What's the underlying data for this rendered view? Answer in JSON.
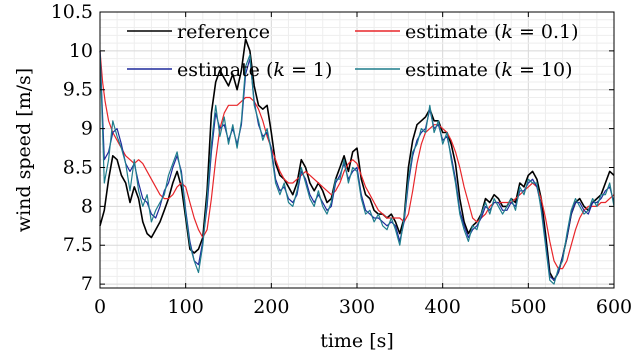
{
  "chart_data": {
    "type": "line",
    "xlabel": "time [s]",
    "ylabel": "wind speed [m/s]",
    "xlim": [
      0,
      600
    ],
    "ylim": [
      6.95,
      10.5
    ],
    "xticks": [
      "0",
      "100",
      "200",
      "300",
      "400",
      "500",
      "600"
    ],
    "yticks": [
      "7",
      "7.5",
      "8",
      "8.5",
      "9",
      "9.5",
      "10",
      "10.5"
    ],
    "grid": true,
    "legend_position": "top",
    "series": [
      {
        "name": "reference",
        "color": "#000000",
        "x": [
          0,
          5,
          10,
          15,
          20,
          25,
          30,
          35,
          40,
          45,
          50,
          55,
          60,
          65,
          70,
          75,
          80,
          85,
          90,
          95,
          100,
          105,
          110,
          115,
          120,
          125,
          130,
          135,
          140,
          145,
          150,
          155,
          160,
          165,
          170,
          175,
          180,
          185,
          190,
          195,
          200,
          205,
          210,
          215,
          220,
          225,
          230,
          235,
          240,
          245,
          250,
          255,
          260,
          265,
          270,
          275,
          280,
          285,
          290,
          295,
          300,
          305,
          310,
          315,
          320,
          325,
          330,
          335,
          340,
          345,
          350,
          355,
          360,
          365,
          370,
          375,
          380,
          385,
          390,
          395,
          400,
          405,
          410,
          415,
          420,
          425,
          430,
          435,
          440,
          445,
          450,
          455,
          460,
          465,
          470,
          475,
          480,
          485,
          490,
          495,
          500,
          505,
          510,
          515,
          520,
          525,
          530,
          535,
          540,
          545,
          550,
          555,
          560,
          565,
          570,
          575,
          580,
          585,
          590,
          595,
          600
        ],
        "values": [
          7.75,
          7.95,
          8.35,
          8.65,
          8.6,
          8.4,
          8.3,
          8.05,
          8.25,
          8.1,
          7.8,
          7.65,
          7.6,
          7.7,
          7.8,
          7.95,
          8.1,
          8.3,
          8.45,
          8.25,
          7.85,
          7.45,
          7.4,
          7.45,
          7.6,
          8.2,
          9.2,
          9.6,
          9.75,
          9.65,
          9.55,
          9.7,
          9.5,
          9.75,
          10.15,
          10.0,
          9.55,
          9.3,
          9.25,
          9.3,
          8.95,
          8.55,
          8.4,
          8.35,
          8.25,
          8.15,
          8.3,
          8.6,
          8.5,
          8.3,
          8.2,
          8.3,
          8.2,
          8.05,
          8.1,
          8.35,
          8.5,
          8.65,
          8.45,
          8.7,
          8.75,
          8.35,
          8.15,
          8.1,
          7.95,
          7.9,
          7.9,
          7.85,
          7.9,
          7.8,
          7.65,
          7.85,
          8.5,
          8.85,
          9.05,
          9.1,
          9.15,
          9.25,
          9.1,
          9.1,
          8.95,
          8.95,
          8.8,
          8.55,
          8.1,
          7.8,
          7.65,
          7.75,
          7.8,
          7.9,
          8.1,
          8.05,
          8.15,
          8.1,
          8.0,
          8.0,
          8.1,
          8.05,
          8.3,
          8.25,
          8.4,
          8.45,
          8.35,
          8.1,
          7.65,
          7.15,
          7.05,
          7.15,
          7.35,
          7.6,
          7.9,
          8.05,
          8.1,
          8.0,
          7.95,
          8.05,
          8.1,
          8.15,
          8.3,
          8.45,
          8.4
        ]
      },
      {
        "name": "estimate (k = 0.1)",
        "color": "#e8262a",
        "x": [
          0,
          3,
          6,
          10,
          15,
          20,
          25,
          30,
          35,
          40,
          45,
          50,
          55,
          60,
          65,
          70,
          75,
          80,
          85,
          90,
          95,
          100,
          105,
          110,
          115,
          120,
          125,
          130,
          135,
          140,
          145,
          150,
          155,
          160,
          165,
          170,
          175,
          180,
          185,
          190,
          195,
          200,
          205,
          210,
          215,
          220,
          225,
          230,
          235,
          240,
          245,
          250,
          255,
          260,
          265,
          270,
          275,
          280,
          285,
          290,
          295,
          300,
          305,
          310,
          315,
          320,
          325,
          330,
          335,
          340,
          345,
          350,
          355,
          360,
          365,
          370,
          375,
          380,
          385,
          390,
          395,
          400,
          405,
          410,
          415,
          420,
          425,
          430,
          435,
          440,
          445,
          450,
          455,
          460,
          465,
          470,
          475,
          480,
          485,
          490,
          495,
          500,
          505,
          510,
          515,
          520,
          525,
          530,
          535,
          540,
          545,
          550,
          555,
          560,
          565,
          570,
          575,
          580,
          585,
          590,
          595,
          600
        ],
        "values": [
          10.0,
          9.6,
          9.35,
          9.1,
          8.95,
          8.85,
          8.75,
          8.65,
          8.6,
          8.55,
          8.6,
          8.55,
          8.45,
          8.35,
          8.25,
          8.15,
          8.1,
          8.1,
          8.15,
          8.25,
          8.3,
          8.25,
          8.05,
          7.85,
          7.7,
          7.6,
          7.7,
          8.1,
          8.6,
          9.0,
          9.2,
          9.3,
          9.3,
          9.3,
          9.35,
          9.4,
          9.4,
          9.35,
          9.25,
          9.1,
          8.9,
          8.75,
          8.6,
          8.45,
          8.35,
          8.3,
          8.3,
          8.35,
          8.4,
          8.45,
          8.4,
          8.35,
          8.3,
          8.25,
          8.2,
          8.15,
          8.2,
          8.3,
          8.45,
          8.55,
          8.6,
          8.55,
          8.4,
          8.25,
          8.15,
          8.05,
          7.95,
          7.9,
          7.85,
          7.85,
          7.85,
          7.85,
          7.8,
          7.9,
          8.2,
          8.55,
          8.8,
          8.95,
          9.0,
          9.05,
          9.05,
          9.0,
          8.95,
          8.85,
          8.7,
          8.5,
          8.25,
          8.05,
          7.85,
          7.8,
          7.85,
          7.9,
          8.0,
          8.05,
          8.05,
          8.05,
          8.05,
          8.05,
          8.1,
          8.15,
          8.2,
          8.25,
          8.3,
          8.25,
          8.1,
          7.85,
          7.55,
          7.3,
          7.2,
          7.2,
          7.3,
          7.5,
          7.7,
          7.85,
          7.95,
          8.0,
          8.0,
          8.0,
          8.05,
          8.05,
          8.1,
          8.15
        ]
      },
      {
        "name": "estimate (k = 1)",
        "color": "#1f2a9c",
        "x": [
          0,
          5,
          10,
          15,
          20,
          25,
          30,
          35,
          40,
          45,
          50,
          55,
          60,
          65,
          70,
          75,
          80,
          85,
          90,
          95,
          100,
          105,
          110,
          115,
          120,
          125,
          130,
          135,
          140,
          145,
          150,
          155,
          160,
          165,
          170,
          175,
          180,
          185,
          190,
          195,
          200,
          205,
          210,
          215,
          220,
          225,
          230,
          235,
          240,
          245,
          250,
          255,
          260,
          265,
          270,
          275,
          280,
          285,
          290,
          295,
          300,
          305,
          310,
          315,
          320,
          325,
          330,
          335,
          340,
          345,
          350,
          355,
          360,
          365,
          370,
          375,
          380,
          385,
          390,
          395,
          400,
          405,
          410,
          415,
          420,
          425,
          430,
          435,
          440,
          445,
          450,
          455,
          460,
          465,
          470,
          475,
          480,
          485,
          490,
          495,
          500,
          505,
          510,
          515,
          520,
          525,
          530,
          535,
          540,
          545,
          550,
          555,
          560,
          565,
          570,
          575,
          580,
          585,
          590,
          595,
          600
        ],
        "values": [
          10.0,
          8.6,
          8.7,
          8.95,
          9.0,
          8.8,
          8.55,
          8.45,
          8.55,
          8.3,
          8.1,
          8.05,
          7.9,
          7.85,
          8.0,
          8.2,
          8.3,
          8.5,
          8.65,
          8.45,
          7.95,
          7.55,
          7.3,
          7.25,
          7.55,
          8.0,
          8.7,
          9.2,
          9.0,
          9.05,
          8.85,
          9.0,
          8.8,
          9.05,
          9.7,
          9.9,
          9.35,
          9.05,
          8.9,
          8.95,
          8.75,
          8.35,
          8.2,
          8.25,
          8.1,
          8.05,
          8.15,
          8.45,
          8.35,
          8.15,
          8.05,
          8.15,
          8.05,
          7.95,
          8.0,
          8.3,
          8.4,
          8.55,
          8.35,
          8.45,
          8.5,
          8.15,
          7.95,
          7.9,
          7.85,
          7.85,
          7.8,
          7.75,
          7.8,
          7.75,
          7.55,
          7.8,
          8.3,
          8.65,
          8.85,
          8.95,
          9.0,
          9.25,
          9.0,
          9.05,
          8.85,
          8.9,
          8.65,
          8.35,
          7.95,
          7.75,
          7.6,
          7.7,
          7.75,
          7.85,
          8.0,
          7.95,
          8.05,
          8.05,
          7.95,
          7.95,
          8.05,
          8.0,
          8.2,
          8.2,
          8.3,
          8.35,
          8.25,
          8.0,
          7.55,
          7.1,
          7.05,
          7.15,
          7.35,
          7.6,
          7.9,
          8.05,
          8.05,
          7.95,
          7.9,
          8.05,
          8.05,
          8.1,
          8.2,
          8.25,
          8.05
        ]
      },
      {
        "name": "estimate (k = 10)",
        "color": "#1e7d8c",
        "x": [
          0,
          5,
          10,
          15,
          20,
          25,
          30,
          35,
          40,
          45,
          50,
          55,
          60,
          65,
          70,
          75,
          80,
          85,
          90,
          95,
          100,
          105,
          110,
          115,
          120,
          125,
          130,
          135,
          140,
          145,
          150,
          155,
          160,
          165,
          170,
          175,
          180,
          185,
          190,
          195,
          200,
          205,
          210,
          215,
          220,
          225,
          230,
          235,
          240,
          245,
          250,
          255,
          260,
          265,
          270,
          275,
          280,
          285,
          290,
          295,
          300,
          305,
          310,
          315,
          320,
          325,
          330,
          335,
          340,
          345,
          350,
          355,
          360,
          365,
          370,
          375,
          380,
          385,
          390,
          395,
          400,
          405,
          410,
          415,
          420,
          425,
          430,
          435,
          440,
          445,
          450,
          455,
          460,
          465,
          470,
          475,
          480,
          485,
          490,
          495,
          500,
          505,
          510,
          515,
          520,
          525,
          530,
          535,
          540,
          545,
          550,
          555,
          560,
          565,
          570,
          575,
          580,
          585,
          590,
          595,
          600
        ],
        "values": [
          10.0,
          8.3,
          8.6,
          9.1,
          8.9,
          8.75,
          8.55,
          8.2,
          8.6,
          8.2,
          8.0,
          8.15,
          7.8,
          7.95,
          8.05,
          8.15,
          8.4,
          8.55,
          8.7,
          8.4,
          7.9,
          7.5,
          7.3,
          7.15,
          7.5,
          8.1,
          8.8,
          9.3,
          8.9,
          9.15,
          8.8,
          9.05,
          8.75,
          9.1,
          9.8,
          9.95,
          9.3,
          9.1,
          8.85,
          9.0,
          8.7,
          8.3,
          8.15,
          8.3,
          8.05,
          8.0,
          8.2,
          8.5,
          8.3,
          8.1,
          8.0,
          8.2,
          8.0,
          7.9,
          8.05,
          8.35,
          8.35,
          8.6,
          8.3,
          8.5,
          8.45,
          8.1,
          7.9,
          7.95,
          7.8,
          7.9,
          7.75,
          7.7,
          7.85,
          7.7,
          7.5,
          7.85,
          8.35,
          8.7,
          8.8,
          9.0,
          8.95,
          9.3,
          8.95,
          9.1,
          8.8,
          8.95,
          8.6,
          8.3,
          7.9,
          7.7,
          7.55,
          7.75,
          7.7,
          7.9,
          8.05,
          7.9,
          8.1,
          8.0,
          7.9,
          8.0,
          8.1,
          7.95,
          8.25,
          8.15,
          8.35,
          8.3,
          8.3,
          7.95,
          7.5,
          7.05,
          7.0,
          7.2,
          7.3,
          7.65,
          7.95,
          8.1,
          8.0,
          7.9,
          7.95,
          8.1,
          8.0,
          8.15,
          8.15,
          8.3,
          8.0
        ]
      }
    ]
  }
}
